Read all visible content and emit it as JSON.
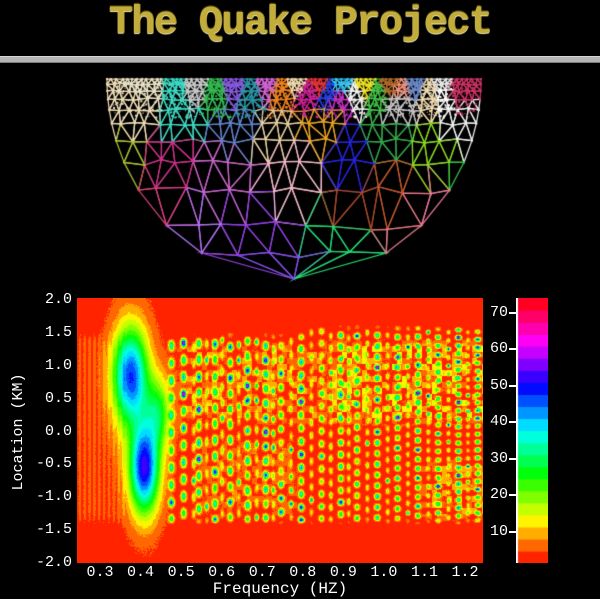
{
  "page": {
    "title": "The Quake Project",
    "background": "#000000",
    "title_color": "#c3ad3a"
  },
  "divider": {
    "color": "#b4b4b4"
  },
  "mesh": {
    "shape": "semicircular-finite-element-mesh",
    "background": "#000000",
    "regions": [
      [
        -143,
        8,
        "#e9e2c5"
      ],
      [
        -120,
        10,
        "#3fd9c4"
      ],
      [
        -98,
        7,
        "#c8c8c8"
      ],
      [
        -78,
        12,
        "#34ba52"
      ],
      [
        -60,
        7,
        "#8a5ae2"
      ],
      [
        -44,
        13,
        "#2b96a6"
      ],
      [
        -28,
        7,
        "#d364d3"
      ],
      [
        -12,
        12,
        "#ef8222"
      ],
      [
        2,
        6,
        "#efd9ab"
      ],
      [
        14,
        12,
        "#cb2493"
      ],
      [
        25,
        6,
        "#e23434"
      ],
      [
        35,
        12,
        "#2442e2"
      ],
      [
        47,
        8,
        "#35c2ef"
      ],
      [
        59,
        14,
        "#f2f2f2"
      ],
      [
        71,
        8,
        "#eee225"
      ],
      [
        83,
        13,
        "#42c246"
      ],
      [
        95,
        7,
        "#b06a2b"
      ],
      [
        107,
        12,
        "#f09278"
      ],
      [
        121,
        8,
        "#6a8aca"
      ],
      [
        135,
        13,
        "#eedab0"
      ],
      [
        149,
        7,
        "#e9e9e9"
      ],
      [
        164,
        10,
        "#ca3464"
      ],
      [
        -160,
        30,
        "#f0dcb4"
      ],
      [
        -170,
        82,
        "#abc132"
      ],
      [
        -112,
        36,
        "#3fd9c4"
      ],
      [
        -56,
        46,
        "#6282ca"
      ],
      [
        -18,
        46,
        "#e8d0a2"
      ],
      [
        28,
        46,
        "#e8a224"
      ],
      [
        46,
        18,
        "#c232c2"
      ],
      [
        62,
        78,
        "#2626e2"
      ],
      [
        8,
        92,
        "#f2bac8"
      ],
      [
        -72,
        96,
        "#c866c8"
      ],
      [
        -122,
        86,
        "#cc3489"
      ],
      [
        -160,
        112,
        "#c84462"
      ],
      [
        -96,
        152,
        "#b272f2"
      ],
      [
        -42,
        162,
        "#9242e2"
      ],
      [
        -130,
        136,
        "#d84282"
      ],
      [
        -76,
        192,
        "#e88a6c"
      ],
      [
        -10,
        200,
        "#8252e8"
      ],
      [
        56,
        172,
        "#22d972"
      ],
      [
        96,
        116,
        "#c25a2c"
      ],
      [
        92,
        62,
        "#32a94a"
      ],
      [
        142,
        72,
        "#8ada22"
      ],
      [
        170,
        42,
        "#f0f0f0"
      ],
      [
        152,
        122,
        "#e87a9a"
      ],
      [
        116,
        162,
        "#e07a8a"
      ],
      [
        72,
        122,
        "#a94a2a"
      ],
      [
        106,
        22,
        "#c2c2c2"
      ],
      [
        186,
        92,
        "#32c244"
      ],
      [
        150,
        12,
        "#ffffff"
      ]
    ]
  },
  "chart_data": {
    "type": "heatmap",
    "title": "",
    "xlabel": "Frequency (HZ)",
    "ylabel": "Location (KM)",
    "xlim": [
      0.243,
      1.244
    ],
    "ylim": [
      -2.0,
      2.0
    ],
    "grid": false,
    "x_ticks": {
      "labels": [
        "0.3",
        "0.4",
        "0.5",
        "0.6",
        "0.7",
        "0.8",
        "0.9",
        "1.0",
        "1.1",
        "1.2"
      ],
      "values": [
        0.3,
        0.4,
        0.5,
        0.6,
        0.7,
        0.8,
        0.9,
        1.0,
        1.1,
        1.2
      ]
    },
    "y_ticks": {
      "labels": [
        "2.0",
        "1.5",
        "1.0",
        "0.5",
        "0.0",
        "-0.5",
        "-1.0",
        "-1.5",
        "-2.0"
      ],
      "values": [
        2.0,
        1.5,
        1.0,
        0.5,
        0.0,
        -0.5,
        -1.0,
        -1.5,
        -2.0
      ]
    },
    "colorbar": {
      "tick_labels": [
        "70",
        "60",
        "50",
        "40",
        "30",
        "20",
        "10"
      ],
      "tick_values": [
        70,
        60,
        50,
        40,
        30,
        20,
        10
      ],
      "vmin": 0,
      "vmax": 75,
      "bands": 22,
      "colormap": "hsv",
      "band_colors": [
        "#ff2300",
        "#ff6800",
        "#ffae00",
        "#fff400",
        "#c4ff00",
        "#80ff00",
        "#3aff00",
        "#00ff0b",
        "#00ff51",
        "#00ff97",
        "#00ffdd",
        "#00dcff",
        "#0096ff",
        "#0050ff",
        "#000bff",
        "#3a00ff",
        "#8000ff",
        "#c500ff",
        "#ff00f4",
        "#ff00ae",
        "#ff0068",
        "#ff0023"
      ]
    },
    "background_value": 2,
    "stripe_loc_range": [
      -1.4,
      1.62
    ],
    "blobs": [
      {
        "f": 0.375,
        "loc": 0.85,
        "fw": 0.03,
        "lw": 0.52,
        "peak": 46
      },
      {
        "f": 0.408,
        "loc": -0.55,
        "fw": 0.026,
        "lw": 0.48,
        "peak": 50
      },
      {
        "f": 0.443,
        "loc": 0.3,
        "fw": 0.022,
        "lw": 0.38,
        "peak": 22
      }
    ],
    "modes": [
      [
        0.475,
        28,
        0.0042
      ],
      [
        0.505,
        33,
        0.0042
      ],
      [
        0.5425,
        33,
        0.0042
      ],
      [
        0.5825,
        29,
        0.0042
      ],
      [
        0.62,
        32,
        0.0042
      ],
      [
        0.6625,
        29,
        0.0042
      ],
      [
        0.7075,
        32,
        0.0042
      ],
      [
        0.745,
        22,
        0.0042
      ],
      [
        0.795,
        34,
        0.0042
      ],
      [
        0.845,
        20,
        0.0042
      ],
      [
        0.8925,
        30,
        0.0042
      ],
      [
        0.9325,
        27,
        0.0042
      ],
      [
        0.9825,
        32,
        0.0042
      ],
      [
        1.0325,
        29,
        0.0042
      ],
      [
        1.0825,
        32,
        0.0042
      ],
      [
        1.1325,
        27,
        0.0042
      ],
      [
        1.1825,
        32,
        0.0042
      ],
      [
        1.23,
        30,
        0.0042
      ],
      [
        0.53,
        13,
        0.003
      ],
      [
        0.562,
        13,
        0.003
      ],
      [
        0.6,
        13,
        0.003
      ],
      [
        0.641,
        13,
        0.003
      ],
      [
        0.685,
        13,
        0.003
      ],
      [
        0.726,
        13,
        0.003
      ],
      [
        0.77,
        13,
        0.003
      ],
      [
        0.82,
        13,
        0.003
      ],
      [
        0.868,
        14,
        0.003
      ],
      [
        0.912,
        14,
        0.003
      ],
      [
        0.958,
        14,
        0.003
      ],
      [
        1.008,
        14,
        0.003
      ],
      [
        1.058,
        14,
        0.003
      ],
      [
        1.108,
        13,
        0.003
      ],
      [
        1.158,
        14,
        0.003
      ],
      [
        1.206,
        13,
        0.003
      ]
    ],
    "wash_regions": [
      {
        "f0": 0.5,
        "f1": 0.85,
        "l0": 0.15,
        "l1": 1.3,
        "amp": 11
      },
      {
        "f0": 0.86,
        "f1": 1.26,
        "l0": 0.15,
        "l1": 1.35,
        "amp": 16
      },
      {
        "f0": 0.55,
        "f1": 0.78,
        "l0": -1.25,
        "l1": -0.15,
        "amp": 7
      },
      {
        "f0": 1.1,
        "f1": 1.26,
        "l0": -1.3,
        "l1": -0.45,
        "amp": 12
      }
    ]
  }
}
